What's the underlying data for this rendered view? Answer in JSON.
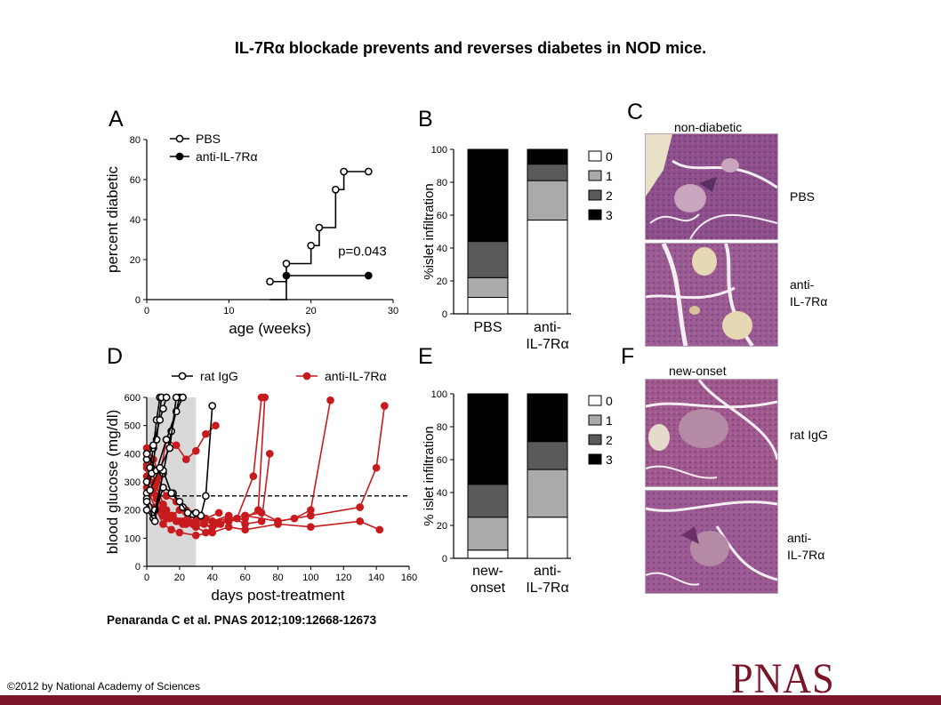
{
  "title": "IL-7Rα blockade prevents and reverses diabetes in NOD mice.",
  "citation": "Penaranda C et al. PNAS 2012;109:12668-12673",
  "copyright": "©2012 by National Academy of Sciences",
  "logo_text": "PNAS",
  "colors": {
    "brand": "#7a1428",
    "red_series": "#c81b1e",
    "black": "#000000",
    "shade": "#d9d9d9"
  },
  "panels": {
    "a": {
      "letter": "A"
    },
    "b": {
      "letter": "B"
    },
    "c": {
      "letter": "C",
      "top_caption": "non-diabetic",
      "row1": "PBS",
      "row2_line1": "anti-",
      "row2_line2": "IL-7Rα"
    },
    "d": {
      "letter": "D"
    },
    "e": {
      "letter": "E"
    },
    "f": {
      "letter": "F",
      "top_caption": "new-onset",
      "row1": "rat IgG",
      "row2_line1": "anti-",
      "row2_line2": "IL-7Rα"
    }
  },
  "chart_data": [
    {
      "id": "A",
      "type": "line",
      "xlabel": "age (weeks)",
      "ylabel": "percent diabetic",
      "xlim": [
        0,
        30
      ],
      "ylim": [
        0,
        80
      ],
      "xticks": [
        0,
        10,
        20,
        30
      ],
      "yticks": [
        0,
        20,
        40,
        60,
        80
      ],
      "step": true,
      "annotation": "p=0.043",
      "legend_position": "top-left",
      "series": [
        {
          "name": "PBS",
          "marker": "open-circle",
          "x": [
            15,
            17,
            20,
            21,
            23,
            24,
            27
          ],
          "y": [
            9,
            18,
            27,
            36,
            55,
            64,
            64
          ]
        },
        {
          "name": "anti-IL-7Rα",
          "marker": "filled-circle",
          "x": [
            15,
            17,
            27
          ],
          "y": [
            0,
            12,
            12
          ]
        }
      ]
    },
    {
      "id": "B",
      "type": "bar",
      "stacked": true,
      "ylabel": "%islet infiltration",
      "ylim": [
        0,
        100
      ],
      "yticks": [
        0,
        20,
        40,
        60,
        80,
        100
      ],
      "categories": [
        [
          "PBS"
        ],
        [
          "anti-",
          "IL-7Rα"
        ]
      ],
      "legend_position": "right",
      "series": [
        {
          "name": "0",
          "color": "#ffffff",
          "values": [
            10,
            57
          ]
        },
        {
          "name": "1",
          "color": "#aaaaaa",
          "values": [
            12,
            24
          ]
        },
        {
          "name": "2",
          "color": "#5a5a5a",
          "values": [
            22,
            10
          ]
        },
        {
          "name": "3",
          "color": "#000000",
          "values": [
            56,
            9
          ]
        }
      ]
    },
    {
      "id": "D",
      "type": "line",
      "xlabel": "days post-treatment",
      "ylabel": "blood glucose (mg/dl)",
      "xlim": [
        0,
        160
      ],
      "ylim": [
        0,
        600
      ],
      "xticks": [
        0,
        20,
        40,
        60,
        80,
        100,
        120,
        140,
        160
      ],
      "yticks": [
        0,
        100,
        200,
        300,
        400,
        500,
        600
      ],
      "shaded_x_range": [
        0,
        30
      ],
      "threshold": 250,
      "legend_position": "top",
      "series_groups": [
        {
          "name": "rat IgG",
          "marker": "open-circle",
          "color": "#000000",
          "lines": [
            {
              "x": [
                0,
                2,
                4,
                6,
                8
              ],
              "y": [
                300,
                350,
                420,
                520,
                600
              ]
            },
            {
              "x": [
                0,
                3,
                6,
                9
              ],
              "y": [
                260,
                330,
                450,
                600
              ]
            },
            {
              "x": [
                0,
                4,
                8,
                10,
                12
              ],
              "y": [
                380,
                430,
                520,
                560,
                600
              ]
            },
            {
              "x": [
                0,
                5,
                10,
                15,
                20
              ],
              "y": [
                240,
                200,
                330,
                480,
                600
              ]
            },
            {
              "x": [
                0,
                6,
                12,
                18,
                22
              ],
              "y": [
                400,
                340,
                450,
                550,
                600
              ]
            },
            {
              "x": [
                0,
                4,
                10,
                16,
                22,
                28,
                33,
                36,
                40
              ],
              "y": [
                230,
                170,
                280,
                260,
                210,
                185,
                180,
                250,
                570
              ]
            },
            {
              "x": [
                0,
                5,
                10,
                15,
                20,
                25,
                30
              ],
              "y": [
                200,
                160,
                340,
                260,
                230,
                190,
                190
              ]
            },
            {
              "x": [
                2,
                8,
                14,
                18
              ],
              "y": [
                270,
                350,
                420,
                600
              ]
            }
          ]
        },
        {
          "name": "anti-IL-7Rα",
          "marker": "filled-circle",
          "color": "#c81b1e",
          "lines": [
            {
              "x": [
                0,
                5,
                10,
                15,
                20,
                25,
                30,
                35,
                40,
                45,
                55,
                65,
                70
              ],
              "y": [
                400,
                300,
                220,
                180,
                200,
                170,
                160,
                150,
                140,
                150,
                170,
                320,
                600
              ]
            },
            {
              "x": [
                0,
                4,
                8,
                12,
                16,
                22,
                28,
                34,
                40,
                50,
                60,
                70,
                75
              ],
              "y": [
                380,
                260,
                200,
                170,
                180,
                160,
                150,
                170,
                160,
                180,
                150,
                160,
                400
              ]
            },
            {
              "x": [
                0,
                6,
                12,
                18,
                24,
                30,
                36,
                42,
                50,
                60,
                68,
                72
              ],
              "y": [
                300,
                240,
                200,
                160,
                150,
                140,
                120,
                150,
                160,
                170,
                200,
                600
              ]
            },
            {
              "x": [
                0,
                5,
                10,
                20,
                30,
                40,
                50,
                60,
                70,
                80,
                90,
                100,
                112
              ],
              "y": [
                350,
                280,
                180,
                160,
                150,
                140,
                170,
                180,
                190,
                160,
                170,
                200,
                590
              ]
            },
            {
              "x": [
                0,
                6,
                14,
                22,
                30,
                40,
                50,
                60,
                80,
                100,
                130,
                140,
                145
              ],
              "y": [
                320,
                250,
                170,
                150,
                140,
                160,
                170,
                180,
                160,
                180,
                210,
                350,
                570
              ]
            },
            {
              "x": [
                0,
                5,
                10,
                15,
                20,
                30,
                40,
                50,
                60,
                80,
                100,
                130,
                142
              ],
              "y": [
                280,
                210,
                150,
                130,
                120,
                110,
                120,
                140,
                130,
                150,
                140,
                160,
                130
              ]
            },
            {
              "x": [
                0,
                4,
                8,
                12,
                18,
                24,
                30,
                36,
                42
              ],
              "y": [
                420,
                380,
                320,
                450,
                430,
                380,
                410,
                470,
                500
              ]
            },
            {
              "x": [
                0,
                6,
                12,
                18,
                24,
                30,
                36,
                44
              ],
              "y": [
                360,
                300,
                250,
                230,
                200,
                180,
                170,
                190
              ]
            }
          ]
        }
      ]
    },
    {
      "id": "E",
      "type": "bar",
      "stacked": true,
      "ylabel": "% islet infiltration",
      "ylim": [
        0,
        100
      ],
      "yticks": [
        0,
        20,
        40,
        60,
        80,
        100
      ],
      "categories": [
        [
          "new-",
          "onset"
        ],
        [
          "anti-",
          "IL-7Rα"
        ]
      ],
      "legend_position": "right",
      "series": [
        {
          "name": "0",
          "color": "#ffffff",
          "values": [
            5,
            25
          ]
        },
        {
          "name": "1",
          "color": "#aaaaaa",
          "values": [
            20,
            29
          ]
        },
        {
          "name": "2",
          "color": "#5a5a5a",
          "values": [
            20,
            17
          ]
        },
        {
          "name": "3",
          "color": "#000000",
          "values": [
            55,
            29
          ]
        }
      ]
    }
  ]
}
